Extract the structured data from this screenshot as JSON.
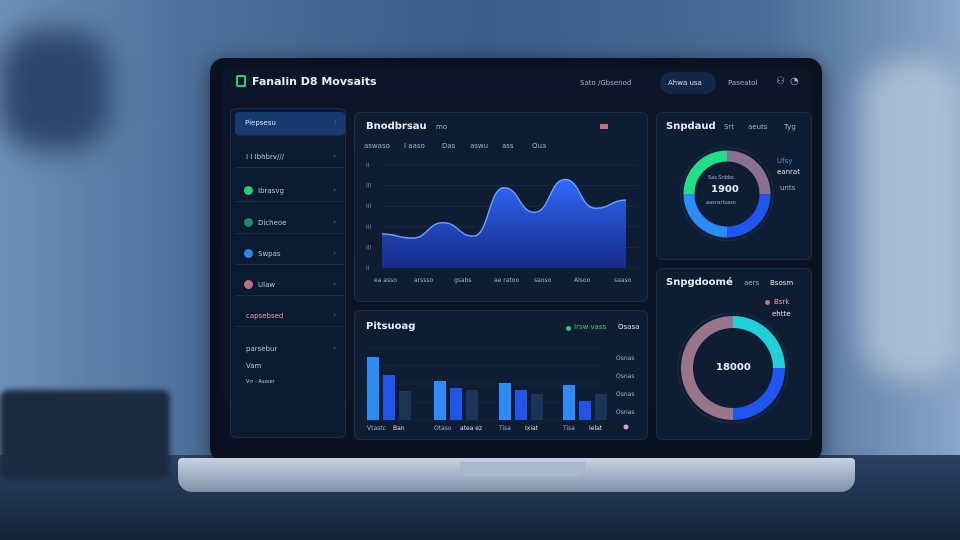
{
  "header": {
    "title": "Fanalin D8 Movsaits",
    "nav": [
      "Sato /Gbsenod",
      "Ahwa usa",
      "Paseatol"
    ],
    "active_nav": "Ahwa usa"
  },
  "sidebar": {
    "items": [
      {
        "label": "Piepsesu",
        "active": true
      },
      {
        "label": "I I Ibhbrv///"
      },
      {
        "label": "Ibrasvg",
        "dot": "#22d07a"
      },
      {
        "label": "Dicheoe",
        "dot": "#1a8a72"
      },
      {
        "label": "Swpas",
        "dot": "#2a86f0"
      },
      {
        "label": "Ulaw",
        "dot": "#c46a86"
      },
      {
        "label": "capsebsed"
      },
      {
        "label": "parsebur"
      },
      {
        "label": "Vam"
      },
      {
        "label": "Vrr - Assser"
      }
    ]
  },
  "line_panel": {
    "title": "Bnodbrsau",
    "subtitle": "mo",
    "tabs": [
      "aswaso",
      "I aaso",
      "Das",
      "aswu",
      "ass",
      "Oua"
    ],
    "y_ticks": [
      "II",
      "III",
      "III",
      "III",
      "III",
      "II"
    ],
    "x_ticks": [
      "ea asso",
      "arssso",
      "gsabs",
      "ae ratoo",
      "saoso",
      "Alsoo",
      "saaso"
    ],
    "values": [
      1.65,
      1.45,
      2.2,
      1.55,
      3.9,
      2.7,
      4.3,
      2.9,
      3.3
    ],
    "accent": "#2f6bff"
  },
  "bar_panel": {
    "title": "Pitsuoag",
    "legend": "Irsw vass",
    "legend_right": "Osasa",
    "y_ticks": [
      "Osnas",
      "Osnas",
      "Osnas",
      "Osnas"
    ],
    "categories": [
      [
        "Vtastc",
        "Ban"
      ],
      [
        "Otaso",
        "atea ez"
      ],
      [
        "Tisa",
        "Ixiat"
      ],
      [
        "Tisa",
        "Ielat"
      ]
    ],
    "series_colors": [
      "#2d8cf5",
      "#1f55e8",
      "#1c3556"
    ],
    "values": [
      [
        63,
        45,
        29
      ],
      [
        39,
        32,
        30
      ],
      [
        37,
        30,
        26
      ],
      [
        35,
        19,
        26
      ]
    ]
  },
  "donut1": {
    "title": "Snpdaud",
    "subtitle": "Srt",
    "right_labels": [
      "aeuts",
      "Tyg"
    ],
    "legend": [
      "Ufsy",
      "eanrat",
      "unts"
    ],
    "center_top": "Sas Snbbs",
    "center_value": "1900",
    "center_bottom": "aasnsrtsaso",
    "segments": [
      {
        "color": "#22e08a",
        "value": 25
      },
      {
        "color": "#8c7090",
        "value": 25
      },
      {
        "color": "#1f55f0",
        "value": 25
      },
      {
        "color": "#2a8cf5",
        "value": 25
      }
    ]
  },
  "donut2": {
    "title": "Snpgdoomé",
    "right_labels": [
      "aers",
      "Bsosm"
    ],
    "legend": [
      "Bsrk",
      "ehtte"
    ],
    "center_value": "18000",
    "segments": [
      {
        "color": "#20d0d8",
        "value": 25
      },
      {
        "color": "#1f55f0",
        "value": 25
      },
      {
        "color": "#9a7488",
        "value": 50
      }
    ]
  }
}
